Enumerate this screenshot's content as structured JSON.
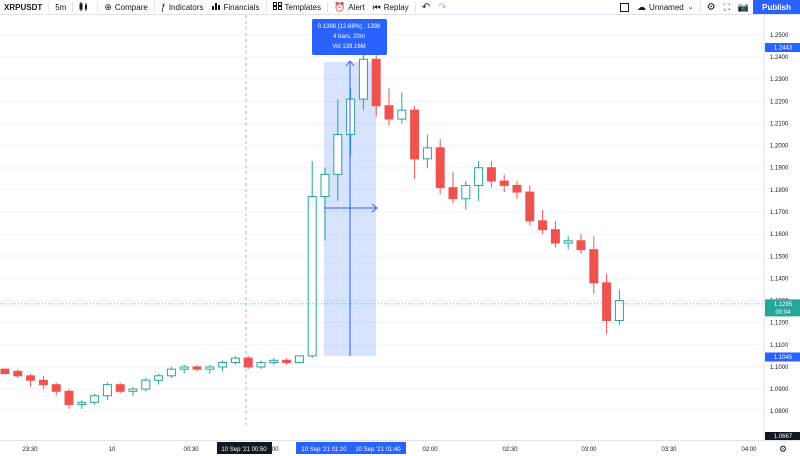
{
  "toolbar": {
    "symbol": "XRPUSDT",
    "interval": "5m",
    "compare": "Compare",
    "indicators": "Indicators",
    "financials": "Financials",
    "templates": "Templates",
    "alert": "Alert",
    "replay": "Replay",
    "layout_name": "Unnamed",
    "publish": "Publish"
  },
  "measure_tooltip": {
    "line1": "0.1398 (12.66%) , 1398",
    "line2": "4 bars, 20m",
    "line3": "Vol 139.16M"
  },
  "price_axis": {
    "ticks": [
      "1.2500",
      "1.2400",
      "1.2300",
      "1.2200",
      "1.2100",
      "1.2000",
      "1.1900",
      "1.1800",
      "1.1700",
      "1.1600",
      "1.1500",
      "1.1400",
      "1.1300",
      "1.1200",
      "1.1100",
      "1.1000",
      "1.0900",
      "1.0800"
    ],
    "badge_high": "1.2443",
    "badge_low": "1.1045",
    "last_price": "1.1285",
    "countdown": "00:04",
    "badge_bottom": "1.0667"
  },
  "time_axis": {
    "ticks": [
      "23:30",
      "10",
      "00:30",
      "01:00",
      "01:30",
      "02:00",
      "02:30",
      "03:00",
      "03:30",
      "04:00"
    ],
    "crosshair_label": "10 Sep '21   00:50",
    "range_start": "10 Sep '21   01:20",
    "range_end": "10 Sep '21   01:40"
  },
  "colors": {
    "up": "#26a69a",
    "down": "#ef5350",
    "accent": "#2962ff",
    "measure": "#2962ff"
  },
  "chart_data": {
    "type": "candlestick",
    "ylim": [
      1.067,
      1.259
    ],
    "candles": [
      [
        1.099,
        1.099,
        1.097,
        1.097
      ],
      [
        1.098,
        1.099,
        1.095,
        1.096
      ],
      [
        1.096,
        1.097,
        1.091,
        1.094
      ],
      [
        1.094,
        1.096,
        1.09,
        1.092
      ],
      [
        1.092,
        1.093,
        1.087,
        1.089
      ],
      [
        1.089,
        1.09,
        1.081,
        1.083
      ],
      [
        1.083,
        1.085,
        1.081,
        1.084
      ],
      [
        1.084,
        1.088,
        1.083,
        1.087
      ],
      [
        1.087,
        1.093,
        1.085,
        1.092
      ],
      [
        1.092,
        1.093,
        1.088,
        1.089
      ],
      [
        1.089,
        1.091,
        1.087,
        1.09
      ],
      [
        1.09,
        1.095,
        1.089,
        1.094
      ],
      [
        1.094,
        1.097,
        1.092,
        1.096
      ],
      [
        1.096,
        1.1,
        1.095,
        1.099
      ],
      [
        1.099,
        1.101,
        1.097,
        1.1
      ],
      [
        1.1,
        1.101,
        1.098,
        1.099
      ],
      [
        1.099,
        1.101,
        1.097,
        1.1
      ],
      [
        1.1,
        1.103,
        1.098,
        1.102
      ],
      [
        1.102,
        1.105,
        1.101,
        1.104
      ],
      [
        1.104,
        1.105,
        1.099,
        1.1
      ],
      [
        1.1,
        1.103,
        1.099,
        1.102
      ],
      [
        1.102,
        1.104,
        1.101,
        1.103
      ],
      [
        1.103,
        1.104,
        1.101,
        1.102
      ],
      [
        1.102,
        1.105,
        1.102,
        1.105
      ],
      [
        1.105,
        1.193,
        1.104,
        1.177
      ],
      [
        1.177,
        1.19,
        1.157,
        1.187
      ],
      [
        1.187,
        1.221,
        1.175,
        1.205
      ],
      [
        1.205,
        1.226,
        1.195,
        1.221
      ],
      [
        1.221,
        1.247,
        1.216,
        1.239
      ],
      [
        1.239,
        1.247,
        1.213,
        1.218
      ],
      [
        1.218,
        1.226,
        1.209,
        1.212
      ],
      [
        1.212,
        1.224,
        1.21,
        1.216
      ],
      [
        1.216,
        1.218,
        1.185,
        1.194
      ],
      [
        1.194,
        1.205,
        1.19,
        1.199
      ],
      [
        1.199,
        1.203,
        1.178,
        1.181
      ],
      [
        1.181,
        1.188,
        1.174,
        1.176
      ],
      [
        1.176,
        1.184,
        1.171,
        1.182
      ],
      [
        1.182,
        1.193,
        1.175,
        1.19
      ],
      [
        1.19,
        1.193,
        1.181,
        1.184
      ],
      [
        1.184,
        1.187,
        1.179,
        1.182
      ],
      [
        1.182,
        1.184,
        1.176,
        1.179
      ],
      [
        1.179,
        1.182,
        1.164,
        1.166
      ],
      [
        1.166,
        1.171,
        1.16,
        1.162
      ],
      [
        1.162,
        1.166,
        1.154,
        1.156
      ],
      [
        1.156,
        1.159,
        1.153,
        1.157
      ],
      [
        1.157,
        1.16,
        1.151,
        1.153
      ],
      [
        1.153,
        1.159,
        1.133,
        1.138
      ],
      [
        1.138,
        1.142,
        1.115,
        1.121
      ],
      [
        1.121,
        1.135,
        1.119,
        1.13
      ]
    ]
  }
}
